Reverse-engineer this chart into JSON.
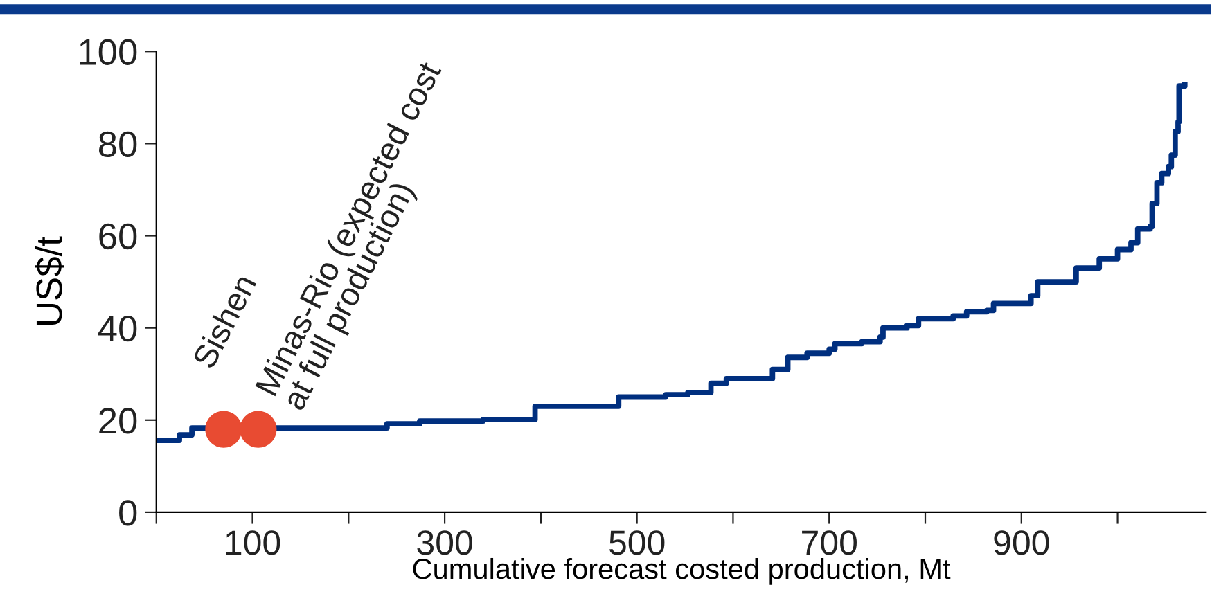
{
  "chart_data": {
    "type": "step",
    "xlabel": "Cumulative forecast costed production, Mt",
    "ylabel": "US$/t",
    "xlim": [
      0,
      1092
    ],
    "ylim": [
      0,
      100
    ],
    "xticks": [
      {
        "value": 0,
        "label": null
      },
      100,
      {
        "value": 200,
        "label": null
      },
      300,
      {
        "value": 400,
        "label": null
      },
      500,
      {
        "value": 600,
        "label": null
      },
      700,
      {
        "value": 800,
        "label": null
      },
      900,
      {
        "value": 1000,
        "label": null
      }
    ],
    "yticks": [
      0,
      20,
      40,
      60,
      80,
      100
    ],
    "grid": false,
    "legend": false,
    "series": [
      {
        "color": "#002f7f",
        "x": [
          3,
          24,
          37,
          240,
          274,
          340,
          394,
          481,
          530,
          553,
          577,
          593,
          639,
          641,
          657,
          677,
          700,
          706,
          734,
          753,
          756,
          781,
          793,
          829,
          843,
          864,
          871,
          910,
          917,
          957,
          981,
          1000,
          1014,
          1021,
          1034,
          1036,
          1041,
          1046,
          1053,
          1056,
          1060,
          1063,
          1064,
          1070
        ],
        "values": [
          15.6,
          16.8,
          18.3,
          19.2,
          19.8,
          20.1,
          23,
          25,
          25.5,
          26,
          28,
          29,
          29,
          31,
          33.6,
          34.5,
          35.4,
          36.6,
          37,
          38,
          40,
          40.5,
          42,
          42.6,
          43.5,
          43.8,
          45.3,
          47,
          50,
          53,
          55,
          57,
          58.5,
          61.5,
          62,
          67,
          71.5,
          73.5,
          75,
          77.5,
          82.6,
          84.7,
          92.5,
          92.8
        ]
      },
      {
        "type": "scatter",
        "color": "#e84b32",
        "marker": "circle",
        "x": [
          70,
          106
        ],
        "values": [
          18,
          18
        ]
      }
    ],
    "annotations": [
      {
        "text": "Sishen",
        "x": 70,
        "y": 18
      },
      {
        "text": "Minas-Rio (expected cost\nat full production)",
        "x": 106,
        "y": 18
      }
    ]
  }
}
